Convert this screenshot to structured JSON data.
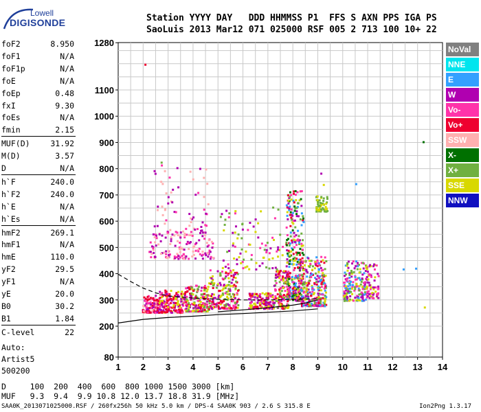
{
  "logo": {
    "line1": "Lowell",
    "line2": "DIGISONDE"
  },
  "header": {
    "line1": "Station YYYY DAY   DDD HHMMSS P1  FFS S AXN PPS IGA PS",
    "line2": "SaoLuis 2013 Mar12 071 025000 RSF 005 2 713 100 10+ 22"
  },
  "params": [
    {
      "label": "foF2",
      "value": "8.950"
    },
    {
      "label": "foF1",
      "value": "N/A"
    },
    {
      "label": "foF1p",
      "value": "N/A"
    },
    {
      "label": "foE",
      "value": "N/A"
    },
    {
      "label": "foEp",
      "value": "0.48"
    },
    {
      "label": "fxI",
      "value": "9.30"
    },
    {
      "label": "foEs",
      "value": "N/A"
    },
    {
      "label": "fmin",
      "value": "2.15"
    },
    {
      "label": "MUF(D)",
      "value": "31.92"
    },
    {
      "label": "M(D)",
      "value": "3.57"
    },
    {
      "label": "D",
      "value": "N/A"
    },
    {
      "label": "h`F",
      "value": "240.0"
    },
    {
      "label": "h`F2",
      "value": "240.0"
    },
    {
      "label": "h`E",
      "value": "N/A"
    },
    {
      "label": "h`Es",
      "value": "N/A"
    },
    {
      "label": "hmF2",
      "value": "269.1"
    },
    {
      "label": "hmF1",
      "value": "N/A"
    },
    {
      "label": "hmE",
      "value": "110.0"
    },
    {
      "label": "yF2",
      "value": "29.5"
    },
    {
      "label": "yF1",
      "value": "N/A"
    },
    {
      "label": "yE",
      "value": "20.0"
    },
    {
      "label": "B0",
      "value": "30.2"
    },
    {
      "label": "B1",
      "value": "1.84"
    },
    {
      "label": "C-level",
      "value": "22"
    }
  ],
  "auto": {
    "l1": "Auto:",
    "l2": "Artist5",
    "l3": "500200"
  },
  "bottom_table": {
    "d_label": "D",
    "d_values": "100  200  400  600  800 1000 1500 3000 [km]",
    "muf_label": "MUF",
    "muf_values": "9.3  9.4  9.9 10.8 12.0 13.7 18.8 31.9 [MHz]"
  },
  "footer": {
    "left": "SAA0K_2013071025000.RSF / 260fx256h 50 kHz 5.0 km / DPS-4 SAA0K 903 / 2.6 S 315.8 E",
    "right": "Ion2Png 1.3.17"
  },
  "legend": [
    {
      "label": "NoVal",
      "color": "#808080"
    },
    {
      "label": "NNE",
      "color": "#00e5ee"
    },
    {
      "label": "E",
      "color": "#33a0ff"
    },
    {
      "label": "W",
      "color": "#b000b0"
    },
    {
      "label": "Vo-",
      "color": "#ff33aa"
    },
    {
      "label": "Vo+",
      "color": "#ee0030"
    },
    {
      "label": "SSW",
      "color": "#ffb0b0"
    },
    {
      "label": "X-",
      "color": "#007000"
    },
    {
      "label": "X+",
      "color": "#70b040"
    },
    {
      "label": "SSE",
      "color": "#d8d800"
    },
    {
      "label": "NNW",
      "color": "#1010c0"
    }
  ],
  "chart_data": {
    "type": "scatter",
    "x_ticks": [
      1,
      2,
      3,
      4,
      5,
      6,
      7,
      8,
      9,
      10,
      11,
      12,
      13,
      14
    ],
    "y_ticks": [
      80,
      200,
      300,
      400,
      500,
      600,
      700,
      800,
      900,
      1000,
      1100,
      1280
    ],
    "xlim": [
      1,
      14
    ],
    "ylim": [
      80,
      1280
    ],
    "grid": true,
    "profile_curve": {
      "x": [
        1.0,
        2.0,
        3.0,
        4.0,
        5.0,
        6.0,
        7.0,
        8.0,
        8.5,
        9.0
      ],
      "y": [
        212,
        226,
        233,
        238,
        244,
        248,
        253,
        258,
        262,
        266
      ]
    },
    "profile_upper": {
      "x": [
        5.0,
        6.0,
        7.0,
        8.0,
        8.5,
        9.0
      ],
      "y": [
        255,
        262,
        270,
        280,
        288,
        300
      ]
    },
    "dashed_curve": {
      "x": [
        1.0,
        1.5,
        2.0,
        2.5,
        3.0,
        4.0,
        5.0,
        6.0,
        7.0,
        8.0,
        9.0
      ],
      "y": [
        398,
        370,
        345,
        327,
        315,
        307,
        303,
        300,
        300,
        302,
        305
      ]
    },
    "clusters": [
      {
        "x": [
          1.95,
          2.6
        ],
        "y": [
          255,
          320
        ],
        "n": 140,
        "colors": [
          "#ee0030",
          "#ff33aa",
          "#b000b0",
          "#ee0030",
          "#ffb0b0"
        ]
      },
      {
        "x": [
          2.6,
          3.6
        ],
        "y": [
          255,
          340
        ],
        "n": 160,
        "colors": [
          "#ee0030",
          "#ff33aa",
          "#b000b0",
          "#ee0030",
          "#d8d800"
        ]
      },
      {
        "x": [
          3.6,
          4.6
        ],
        "y": [
          260,
          360
        ],
        "n": 180,
        "colors": [
          "#ee0030",
          "#ff33aa",
          "#d8d800",
          "#70b040",
          "#b000b0"
        ]
      },
      {
        "x": [
          4.6,
          5.8
        ],
        "y": [
          270,
          420
        ],
        "n": 200,
        "colors": [
          "#ee0030",
          "#d8d800",
          "#70b040",
          "#ff33aa",
          "#b000b0"
        ]
      },
      {
        "x": [
          6.2,
          7.2
        ],
        "y": [
          270,
          330
        ],
        "n": 140,
        "colors": [
          "#ee0030",
          "#ff33aa",
          "#d8d800",
          "#b000b0"
        ]
      },
      {
        "x": [
          7.2,
          7.8
        ],
        "y": [
          270,
          420
        ],
        "n": 130,
        "colors": [
          "#ee0030",
          "#ff33aa",
          "#d8d800",
          "#70b040",
          "#b000b0"
        ]
      },
      {
        "x": [
          7.7,
          8.4
        ],
        "y": [
          300,
          720
        ],
        "n": 340,
        "colors": [
          "#ee0030",
          "#ff33aa",
          "#b000b0",
          "#d8d800",
          "#70b040",
          "#33a0ff",
          "#007000"
        ]
      },
      {
        "x": [
          8.3,
          9.3
        ],
        "y": [
          280,
          470
        ],
        "n": 260,
        "colors": [
          "#ee0030",
          "#ff33aa",
          "#b000b0",
          "#d8d800",
          "#70b040",
          "#33a0ff"
        ]
      },
      {
        "x": [
          8.9,
          9.35
        ],
        "y": [
          640,
          700
        ],
        "n": 60,
        "colors": [
          "#d8d800",
          "#70b040"
        ]
      },
      {
        "x": [
          10.0,
          10.9
        ],
        "y": [
          300,
          460
        ],
        "n": 170,
        "colors": [
          "#b000b0",
          "#ff33aa",
          "#d8d800",
          "#70b040",
          "#33a0ff"
        ]
      },
      {
        "x": [
          10.9,
          11.4
        ],
        "y": [
          310,
          440
        ],
        "n": 70,
        "colors": [
          "#b000b0",
          "#d8d800",
          "#ff33aa"
        ]
      },
      {
        "x": [
          2.2,
          4.8
        ],
        "y": [
          460,
          560
        ],
        "n": 140,
        "colors": [
          "#b000b0",
          "#ff33aa",
          "#ffb0b0"
        ]
      },
      {
        "x": [
          2.4,
          4.6
        ],
        "y": [
          560,
          820
        ],
        "n": 70,
        "colors": [
          "#b000b0",
          "#ff33aa",
          "#ffb0b0"
        ]
      },
      {
        "x": [
          5.0,
          7.6
        ],
        "y": [
          420,
          660
        ],
        "n": 90,
        "colors": [
          "#b000b0",
          "#ff33aa",
          "#70b040",
          "#d8d800"
        ]
      }
    ],
    "isolated_points": [
      {
        "x": 2.05,
        "y": 1200,
        "color": "#ee0030"
      },
      {
        "x": 2.7,
        "y": 827,
        "color": "#70b040"
      },
      {
        "x": 10.5,
        "y": 745,
        "color": "#33a0ff"
      },
      {
        "x": 12.4,
        "y": 420,
        "color": "#33a0ff"
      },
      {
        "x": 12.9,
        "y": 423,
        "color": "#33a0ff"
      },
      {
        "x": 13.2,
        "y": 905,
        "color": "#007000"
      },
      {
        "x": 13.25,
        "y": 275,
        "color": "#d8d800"
      },
      {
        "x": 9.1,
        "y": 785,
        "color": "#b000b0"
      },
      {
        "x": 9.2,
        "y": 742,
        "color": "#d8d800"
      }
    ]
  }
}
